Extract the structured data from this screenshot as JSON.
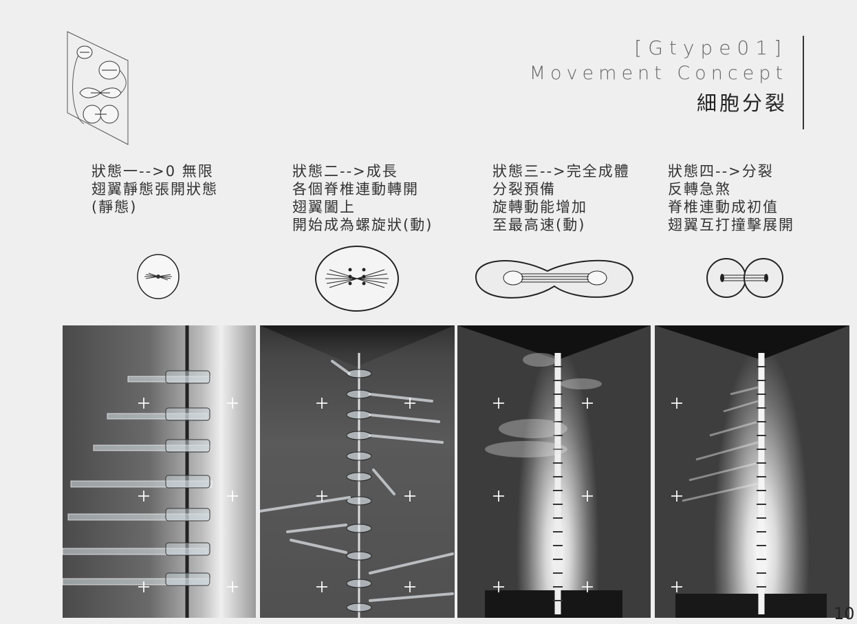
{
  "header": {
    "code": "[Gtype01]",
    "subtitle": "Movement Concept",
    "title_cn": "細胞分裂"
  },
  "states": [
    {
      "lines": [
        "狀態一-->0 無限",
        "翅翼靜態張開狀態",
        "(靜態)"
      ]
    },
    {
      "lines": [
        "狀態二-->成長",
        "各個脊椎連動轉開",
        "翅翼闔上",
        "開始成為螺旋狀(動)"
      ]
    },
    {
      "lines": [
        "狀態三-->完全成體",
        "分裂預備",
        "旋轉動能增加",
        "至最高速(動)"
      ]
    },
    {
      "lines": [
        "狀態四-->分裂",
        "反轉急煞",
        "脊椎連動成初值",
        "翅翼互打撞擊展開"
      ]
    }
  ],
  "page_number": "10"
}
